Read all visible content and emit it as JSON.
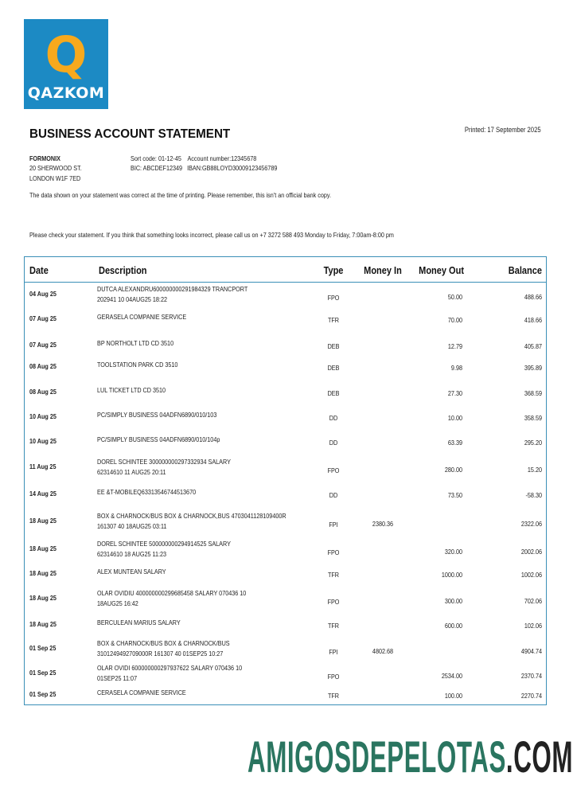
{
  "logo": {
    "glyph": "Q",
    "text": "QAZKOM",
    "bg_color": "#1c8ac4",
    "glyph_color": "#f7a91d"
  },
  "title": "BUSINESS ACCOUNT STATEMENT",
  "printed": "Printed: 17 September 2025",
  "customer": {
    "name": "FORMONIX",
    "address1": "20 SHERWOOD ST.",
    "address2": "LONDON W1F 7ED"
  },
  "account": {
    "line1": "Sort code: 01-12-45    Account number:12345678",
    "line2": "BIC: ABCDEF12349   IBAN:GB88LOYD30009123456789"
  },
  "notice": "The data shown on your statement was correct at the time of printing. Please remember, this isn't an official bank copy.",
  "check_notice": "Please check your statement. If you think that something looks incorrect, please call us on +7 3272 588 493 Monday to Friday, 7:00am-8:00 pm",
  "table": {
    "headers": {
      "date": "Date",
      "description": "Description",
      "type": "Type",
      "money_in": "Money In",
      "money_out": "Money Out",
      "balance": "Balance"
    },
    "rows": [
      {
        "date": "04 Aug 25",
        "description": [
          "DUTCA ALEXANDRU600000000291984329 TRANCPORT",
          "202941 10 04AUG25 18:22"
        ],
        "type": "FPO",
        "money_in": "",
        "money_out": "50.00",
        "balance": "488.66"
      },
      {
        "date": "07 Aug 25",
        "description": [
          "GERASELA COMPANIE SERVICE"
        ],
        "type": "TFR",
        "money_in": "",
        "money_out": "70.00",
        "balance": "418.66"
      },
      {
        "date": "07 Aug 25",
        "description": [
          "BP NORTHOLT LTD CD 3510"
        ],
        "type": "DEB",
        "money_in": "",
        "money_out": "12.79",
        "balance": "405.87"
      },
      {
        "date": "08 Aug 25",
        "description": [
          "TOOLSTATION PARK CD 3510"
        ],
        "type": "DEB",
        "money_in": "",
        "money_out": "9.98",
        "balance": "395.89"
      },
      {
        "date": "08 Aug 25",
        "description": [
          "LUL TICKET LTD CD 3510"
        ],
        "type": "DEB",
        "money_in": "",
        "money_out": "27.30",
        "balance": "368.59"
      },
      {
        "date": "10 Aug 25",
        "description": [
          "PC/SIMPLY BUSINESS 04ADFN6890/010/103"
        ],
        "type": "DD",
        "money_in": "",
        "money_out": "10.00",
        "balance": "358.59"
      },
      {
        "date": "10 Aug 25",
        "description": [
          "PC/SIMPLY BUSINESS 04ADFN6890/010/104p"
        ],
        "type": "DD",
        "money_in": "",
        "money_out": "63.39",
        "balance": "295.20"
      },
      {
        "date": "11 Aug 25",
        "description": [
          "DOREL SCHINTEE 300000000297332934 SALARY",
          "62314610 11 AUG25 20:11"
        ],
        "type": "FPO",
        "money_in": "",
        "money_out": "280.00",
        "balance": "15.20"
      },
      {
        "date": "14 Aug 25",
        "description": [
          "EE &T-MOBILEQ63313546744513670"
        ],
        "type": "DD",
        "money_in": "",
        "money_out": "73.50",
        "balance": "-58.30"
      },
      {
        "date": "18 Aug 25",
        "description": [
          "BOX & CHARNOCK/BUS BOX & CHARNOCK,BUS 4703041128109400R",
          "161307 40 18AUG25 03:11"
        ],
        "type": "FPI",
        "money_in": "2380.36",
        "money_out": "",
        "balance": "2322.06"
      },
      {
        "date": "18 Aug 25",
        "description": [
          "DOREL SCHINTEE 500000000294914525 SALARY",
          "62314610 18 AUG25 11:23"
        ],
        "type": "FPO",
        "money_in": "",
        "money_out": "320.00",
        "balance": "2002.06"
      },
      {
        "date": "18 Aug 25",
        "description": [
          "ALEX MUNTEAN SALARY"
        ],
        "type": "TFR",
        "money_in": "",
        "money_out": "1000.00",
        "balance": "1002.06"
      },
      {
        "date": "18 Aug 25",
        "description": [
          "OLAR OVIDIU 400000000299685458 SALARY 070436 10",
          "18AUG25 16:42"
        ],
        "type": "FPO",
        "money_in": "",
        "money_out": "300.00",
        "balance": "702.06"
      },
      {
        "date": "18 Aug 25",
        "description": [
          "BERCULEAN MARIUS SALARY"
        ],
        "type": "TFR",
        "money_in": "",
        "money_out": "600.00",
        "balance": "102.06"
      },
      {
        "date": "01 Sep 25",
        "description": [
          "BOX & CHARNOCK/BUS BOX & CHARNOCK/BUS",
          "3101249492709000R 161307 40 01SEP25 10:27"
        ],
        "type": "FPI",
        "money_in": "4802.68",
        "money_out": "",
        "balance": "4904.74"
      },
      {
        "date": "01 Sep 25",
        "description": [
          "OLAR OVIDI 600000000297937622 SALARY 070436 10",
          "01SEP25 11:07"
        ],
        "type": "FPO",
        "money_in": "",
        "money_out": "2534.00",
        "balance": "2370.74"
      },
      {
        "date": "01 Sep 25",
        "description": [
          "CERASELA COMPANIE SERVICE"
        ],
        "type": "TFR",
        "money_in": "",
        "money_out": "100.00",
        "balance": "2270.74"
      }
    ]
  },
  "watermark": {
    "main": "AMIGOSDEPELOTAS",
    "suffix": ".COM",
    "main_color": "#2a7560",
    "suffix_color": "#222222"
  }
}
